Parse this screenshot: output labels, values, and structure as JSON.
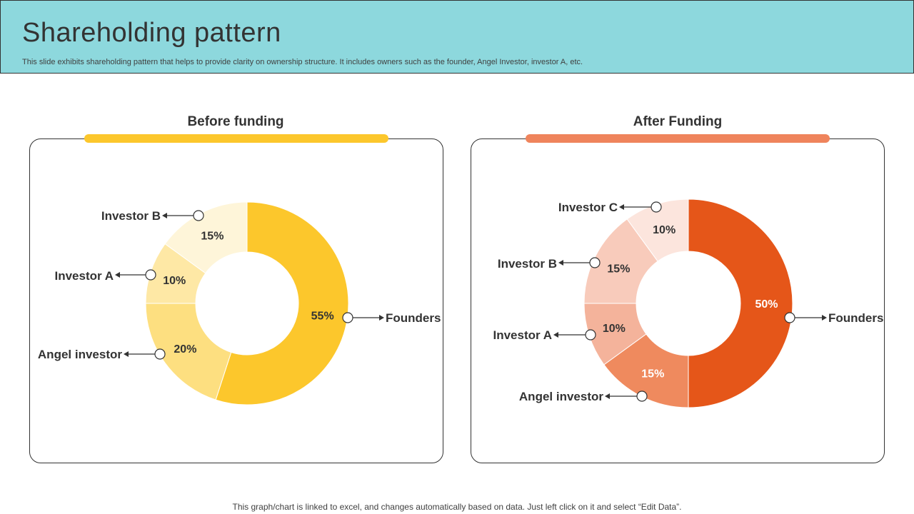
{
  "header": {
    "title": "Shareholding pattern",
    "subtitle": "This slide exhibits shareholding pattern that helps to provide clarity on ownership structure. It includes owners such as the founder, Angel Investor, investor A, etc."
  },
  "footer": {
    "note": "This graph/chart is linked to excel, and changes automatically based on data. Just left click on it and select “Edit Data”."
  },
  "colors": {
    "header_bg": "#8dd8dd",
    "before_accent": "#fcc72c",
    "after_accent": "#ef845c"
  },
  "panels": [
    {
      "title": "Before funding"
    },
    {
      "title": "After Funding"
    }
  ],
  "chart_data": [
    {
      "type": "pie",
      "variant": "donut",
      "title": "Before funding",
      "slices": [
        {
          "label": "Founders",
          "value": 55,
          "display": "55%",
          "color": "#fcc72c"
        },
        {
          "label": "Angel investor",
          "value": 20,
          "display": "20%",
          "color": "#fddf80"
        },
        {
          "label": "Investor A",
          "value": 10,
          "display": "10%",
          "color": "#fee8a5"
        },
        {
          "label": "Investor B",
          "value": 15,
          "display": "15%",
          "color": "#fef5d9"
        }
      ]
    },
    {
      "type": "pie",
      "variant": "donut",
      "title": "After Funding",
      "slices": [
        {
          "label": "Founders",
          "value": 50,
          "display": "50%",
          "color": "#e55619"
        },
        {
          "label": "Angel investor",
          "value": 15,
          "display": "15%",
          "color": "#ef8a5e"
        },
        {
          "label": "Investor A",
          "value": 10,
          "display": "10%",
          "color": "#f4b39b"
        },
        {
          "label": "Investor B",
          "value": 15,
          "display": "15%",
          "color": "#f8cbbb"
        },
        {
          "label": "Investor C",
          "value": 10,
          "display": "10%",
          "color": "#fce5dd"
        }
      ]
    }
  ]
}
